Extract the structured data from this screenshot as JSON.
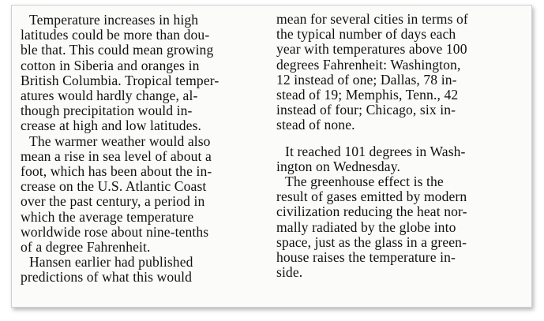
{
  "left_column": {
    "lines": [
      "Temperature increases in high",
      "latitudes could be more than dou-",
      "ble that. This could mean growing",
      "cotton in Siberia and oranges in",
      "British Columbia. Tropical temper-",
      "atures would hardly change, al-",
      "though precipitation would in-",
      "crease at high and low latitudes.",
      "The warmer weather would also",
      "mean a rise in sea level of about a",
      "foot, which has been about the in-",
      "crease on the U.S. Atlantic Coast",
      "over the past century, a period in",
      "which the average temperature",
      "worldwide rose about nine-tenths",
      "of a degree Fahrenheit.",
      "Hansen earlier had published",
      "predictions of what this would"
    ]
  },
  "right_column": {
    "lines": [
      "mean for several cities in terms of",
      "the typical number of days each",
      "year with temperatures above 100",
      "degrees Fahrenheit: Washington,",
      "12 instead of one; Dallas, 78 in-",
      "stead of 19; Memphis, Tenn., 42",
      "instead of four; Chicago, six in-",
      "stead of none.",
      "It reached 101 degrees in Wash-",
      "ington on Wednesday.",
      "The greenhouse effect is the",
      "result of gases emitted by modern",
      "civilization reducing the heat nor-",
      "mally radiated by the globe into",
      "space, just as the glass in a green-",
      "house raises the temperature in-",
      "side."
    ]
  }
}
